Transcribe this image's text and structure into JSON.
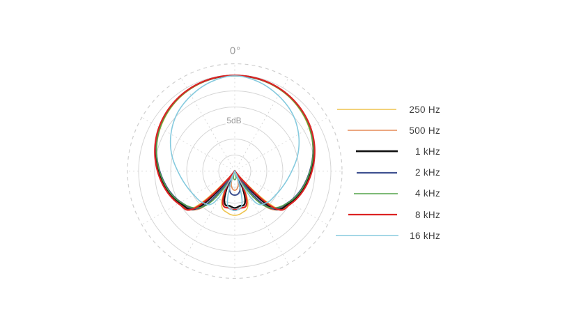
{
  "chart_data": {
    "type": "line",
    "coordinate_system": "polar",
    "description": "Microphone directional polar pattern, one curve per frequency",
    "labels": {
      "top_angle": "0°",
      "scale": "5dB"
    },
    "grid": {
      "db_per_division": 5,
      "solid_rings": 6,
      "db_floor": -30,
      "outer_ring_style": "dashed",
      "spoke_step_deg": 30
    },
    "legend_position": "right",
    "series": [
      {
        "name": "250 Hz",
        "color": "#eec44f",
        "plot_width": 1.6,
        "legend_width": 1.5,
        "legend_span": [
          4,
          89
        ],
        "samples_deg_db": [
          [
            0,
            -0.3
          ],
          [
            30,
            -1.0
          ],
          [
            60,
            -3.2
          ],
          [
            90,
            -6.4
          ],
          [
            120,
            -10.0
          ],
          [
            132,
            -13.0
          ],
          [
            141,
            -30
          ],
          [
            158,
            -19.0
          ],
          [
            170,
            -16.8
          ],
          [
            180,
            -16.2
          ]
        ]
      },
      {
        "name": "500 Hz",
        "color": "#e58a56",
        "plot_width": 1.6,
        "legend_width": 1.6,
        "legend_span": [
          19,
          90
        ],
        "samples_deg_db": [
          [
            0,
            -0.25
          ],
          [
            30,
            -0.9
          ],
          [
            60,
            -3.0
          ],
          [
            90,
            -6.0
          ],
          [
            120,
            -10.2
          ],
          [
            138,
            -14.5
          ],
          [
            150,
            -30
          ],
          [
            166,
            -25.5
          ],
          [
            180,
            -24.0
          ]
        ]
      },
      {
        "name": "1 kHz",
        "color": "#141414",
        "plot_width": 2.4,
        "legend_width": 2.8,
        "legend_span": [
          31,
          91
        ],
        "samples_deg_db": [
          [
            0,
            -0.2
          ],
          [
            30,
            -0.8
          ],
          [
            60,
            -2.9
          ],
          [
            90,
            -6.3
          ],
          [
            120,
            -10.2
          ],
          [
            135,
            -13.8
          ],
          [
            145,
            -30
          ],
          [
            161,
            -20.0
          ],
          [
            172,
            -19.0
          ],
          [
            180,
            -18.5
          ]
        ]
      },
      {
        "name": "2 kHz",
        "color": "#3f5190",
        "plot_width": 2.0,
        "legend_width": 2.2,
        "legend_span": [
          32,
          90
        ],
        "samples_deg_db": [
          [
            0,
            -0.2
          ],
          [
            30,
            -0.85
          ],
          [
            60,
            -3.0
          ],
          [
            90,
            -6.6
          ],
          [
            120,
            -10.6
          ],
          [
            138,
            -15.0
          ],
          [
            149,
            -30
          ],
          [
            164,
            -24.0
          ],
          [
            180,
            -22.5
          ]
        ]
      },
      {
        "name": "4 kHz",
        "color": "#53a348",
        "plot_width": 1.6,
        "legend_width": 1.6,
        "legend_span": [
          28,
          91
        ],
        "samples_deg_db": [
          [
            0,
            -0.2
          ],
          [
            30,
            -0.9
          ],
          [
            60,
            -3.1
          ],
          [
            90,
            -6.5
          ],
          [
            120,
            -10.5
          ],
          [
            140,
            -16.0
          ],
          [
            154,
            -30
          ],
          [
            168,
            -28.0
          ],
          [
            180,
            -27.3
          ]
        ]
      },
      {
        "name": "8 kHz",
        "color": "#dc2323",
        "plot_width": 2.2,
        "legend_width": 2.2,
        "legend_span": [
          20,
          90
        ],
        "samples_deg_db": [
          [
            0,
            -0.15
          ],
          [
            30,
            -0.75
          ],
          [
            60,
            -2.7
          ],
          [
            90,
            -5.9
          ],
          [
            120,
            -9.7
          ],
          [
            133,
            -13.0
          ],
          [
            143,
            -30
          ],
          [
            159,
            -19.5
          ],
          [
            171,
            -18.3
          ],
          [
            180,
            -17.9
          ]
        ]
      },
      {
        "name": "16 kHz",
        "color": "#85cade",
        "plot_width": 1.6,
        "legend_width": 1.6,
        "legend_span": [
          2,
          92
        ],
        "samples_deg_db": [
          [
            0,
            -0.3
          ],
          [
            15,
            -1.2
          ],
          [
            30,
            -2.8
          ],
          [
            45,
            -4.6
          ],
          [
            60,
            -7.0
          ],
          [
            75,
            -9.6
          ],
          [
            90,
            -12.2
          ],
          [
            105,
            -14.0
          ],
          [
            120,
            -15.2
          ],
          [
            135,
            -16.0
          ],
          [
            147,
            -18.5
          ],
          [
            156,
            -30
          ],
          [
            167,
            -19.8
          ],
          [
            176,
            -17.9
          ],
          [
            180,
            -17.7
          ]
        ]
      }
    ]
  },
  "style": {
    "ring_color": "#d5d5d5",
    "spoke_color": "#d8d8d8",
    "dashed_ring_color": "#cfcfcf",
    "background": "#ffffff"
  }
}
